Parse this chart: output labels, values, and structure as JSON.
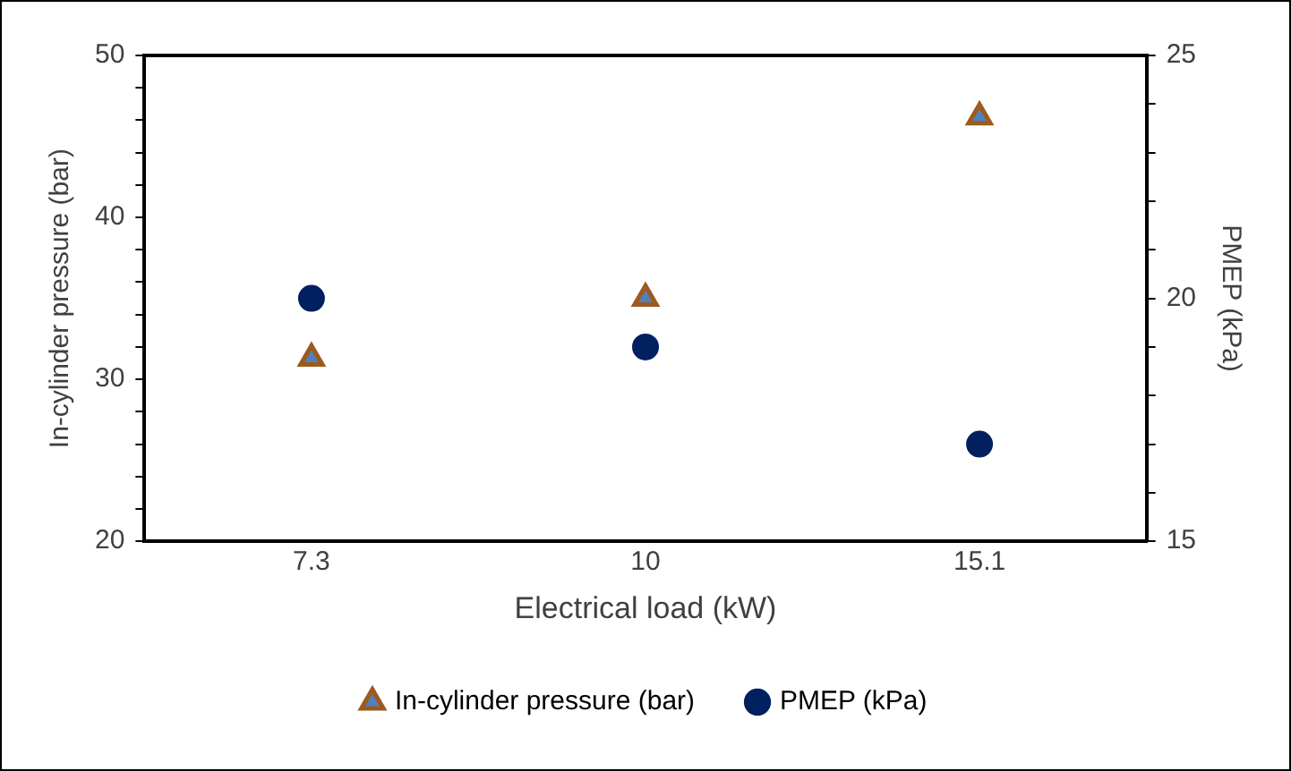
{
  "chart_data": {
    "type": "scatter",
    "xlabel": "Electrical load (kW)",
    "ylabel": "In-cylinder pressure (bar)",
    "y2label": "PMEP (kPa)",
    "categories": [
      "7.3",
      "10",
      "15.1"
    ],
    "series": [
      {
        "name": "In-cylinder pressure (bar)",
        "color": "#9c5a1e",
        "marker": "triangle",
        "values": [
          31.3,
          35,
          46.2
        ]
      },
      {
        "name": "PMEP (kPa)",
        "color": "#002060",
        "marker": "circle",
        "axis": "y2",
        "values": [
          20,
          19,
          17
        ]
      }
    ],
    "ylim": [
      20,
      50
    ],
    "yticks": [
      20,
      {
        "value": 22,
        "label": null
      },
      {
        "value": 24,
        "label": null
      },
      {
        "value": 26,
        "label": null
      },
      {
        "value": 28,
        "label": null
      },
      30,
      {
        "value": 32,
        "label": null
      },
      {
        "value": 34,
        "label": null
      },
      {
        "value": 36,
        "label": null
      },
      {
        "value": 38,
        "label": null
      },
      40,
      {
        "value": 42,
        "label": null
      },
      {
        "value": 44,
        "label": null
      },
      {
        "value": 46,
        "label": null
      },
      {
        "value": 48,
        "label": null
      },
      50
    ],
    "y2lim": [
      15,
      25
    ],
    "y2ticks": [
      15,
      {
        "value": 16,
        "label": null
      },
      {
        "value": 17,
        "label": null
      },
      {
        "value": 18,
        "label": null
      },
      {
        "value": 19,
        "label": null
      },
      20,
      {
        "value": 21,
        "label": null
      },
      {
        "value": 22,
        "label": null
      },
      {
        "value": 23,
        "label": null
      },
      {
        "value": 24,
        "label": null
      },
      25
    ],
    "grid": false,
    "legend": "bottom"
  }
}
